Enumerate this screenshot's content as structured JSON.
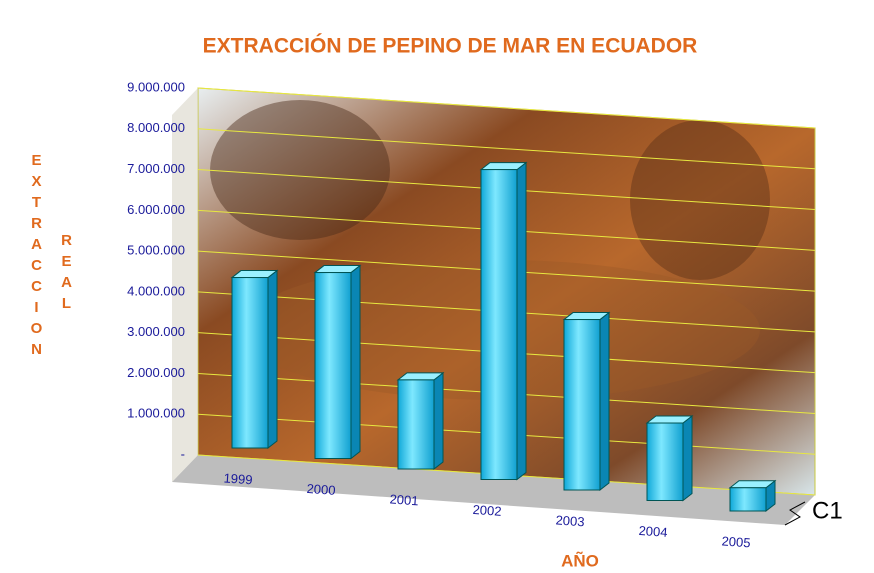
{
  "chart_data": {
    "type": "bar3d",
    "title": "EXTRACCIÓN DE PEPINO DE MAR EN ECUADOR",
    "x_label": "AÑO",
    "y_label": [
      "EXTRACCION",
      "REAL"
    ],
    "series_name": "C1",
    "categories": [
      "1999",
      "2000",
      "2001",
      "2002",
      "2003",
      "2004",
      "2005"
    ],
    "values": [
      4400000,
      4800000,
      2300000,
      8000000,
      4400000,
      2000000,
      600000
    ],
    "color": "#29c8f0",
    "ylim": [
      0,
      9000000
    ],
    "yticks": [
      {
        "value": 0,
        "label": "-"
      },
      {
        "value": 1000000,
        "label": "1.000.000"
      },
      {
        "value": 2000000,
        "label": "2.000.000"
      },
      {
        "value": 3000000,
        "label": "3.000.000"
      },
      {
        "value": 4000000,
        "label": "4.000.000"
      },
      {
        "value": 5000000,
        "label": "5.000.000"
      },
      {
        "value": 6000000,
        "label": "6.000.000"
      },
      {
        "value": 7000000,
        "label": "7.000.000"
      },
      {
        "value": 8000000,
        "label": "8.000.000"
      },
      {
        "value": 9000000,
        "label": "9.000.000"
      }
    ],
    "grid": true
  }
}
